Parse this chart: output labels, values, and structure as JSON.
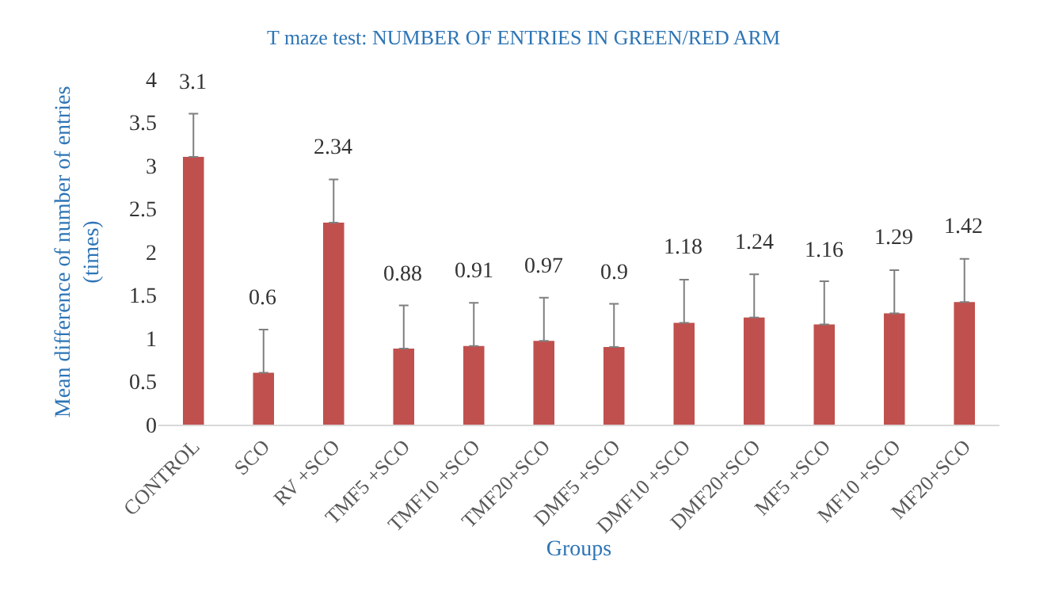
{
  "chart_data": {
    "type": "bar",
    "title": "T maze test: NUMBER OF ENTRIES IN GREEN/RED ARM",
    "xlabel": "Groups",
    "ylabel": "Mean difference of number of entries (times)",
    "categories": [
      "CONTROL",
      "SCO",
      "RV +SCO",
      "TMF5 +SCO",
      "TMF10 +SCO",
      "TMF20+SCO",
      "DMF5 +SCO",
      "DMF10 +SCO",
      "DMF20+SCO",
      "MF5 +SCO",
      "MF10 +SCO",
      "MF20+SCO"
    ],
    "values": [
      3.1,
      0.6,
      2.34,
      0.88,
      0.91,
      0.97,
      0.9,
      1.18,
      1.24,
      1.16,
      1.29,
      1.42
    ],
    "errors": [
      [
        3.1,
        3.6
      ],
      [
        0.6,
        1.1
      ],
      [
        2.34,
        2.84
      ],
      [
        0.88,
        1.38
      ],
      [
        0.91,
        1.41
      ],
      [
        0.97,
        1.47
      ],
      [
        0.9,
        1.4
      ],
      [
        1.18,
        1.68
      ],
      [
        1.24,
        1.74
      ],
      [
        1.16,
        1.66
      ],
      [
        1.29,
        1.79
      ],
      [
        1.42,
        1.92
      ]
    ],
    "color": "#c0504d",
    "ylim": [
      0,
      4
    ],
    "yticks": [
      0,
      0.5,
      1,
      1.5,
      2,
      2.5,
      3,
      3.5,
      4
    ],
    "data_labels": true,
    "grid": false
  }
}
